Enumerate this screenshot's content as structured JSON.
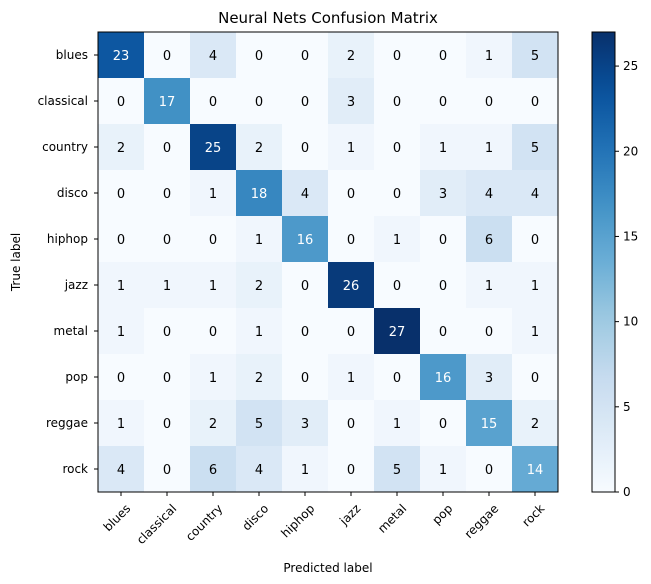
{
  "chart_data": {
    "type": "heatmap",
    "title": "Neural Nets Confusion Matrix",
    "xlabel": "Predicted label",
    "ylabel": "True label",
    "x_categories": [
      "blues",
      "classical",
      "country",
      "disco",
      "hiphop",
      "jazz",
      "metal",
      "pop",
      "reggae",
      "rock"
    ],
    "y_categories": [
      "blues",
      "classical",
      "country",
      "disco",
      "hiphop",
      "jazz",
      "metal",
      "pop",
      "reggae",
      "rock"
    ],
    "values": [
      [
        23,
        0,
        4,
        0,
        0,
        2,
        0,
        0,
        1,
        5
      ],
      [
        0,
        17,
        0,
        0,
        0,
        3,
        0,
        0,
        0,
        0
      ],
      [
        2,
        0,
        25,
        2,
        0,
        1,
        0,
        1,
        1,
        5
      ],
      [
        0,
        0,
        1,
        18,
        4,
        0,
        0,
        3,
        4,
        4
      ],
      [
        0,
        0,
        0,
        1,
        16,
        0,
        1,
        0,
        6,
        0
      ],
      [
        1,
        1,
        1,
        2,
        0,
        26,
        0,
        0,
        1,
        1
      ],
      [
        1,
        0,
        0,
        1,
        0,
        0,
        27,
        0,
        0,
        1
      ],
      [
        0,
        0,
        1,
        2,
        0,
        1,
        0,
        16,
        3,
        0
      ],
      [
        1,
        0,
        2,
        5,
        3,
        0,
        1,
        0,
        15,
        2
      ],
      [
        4,
        0,
        6,
        4,
        1,
        0,
        5,
        1,
        0,
        14
      ]
    ],
    "colorbar": {
      "colormap": "Blues",
      "range": [
        0,
        27
      ],
      "ticks": [
        0,
        5,
        10,
        15,
        20,
        25
      ]
    },
    "grid": false
  }
}
